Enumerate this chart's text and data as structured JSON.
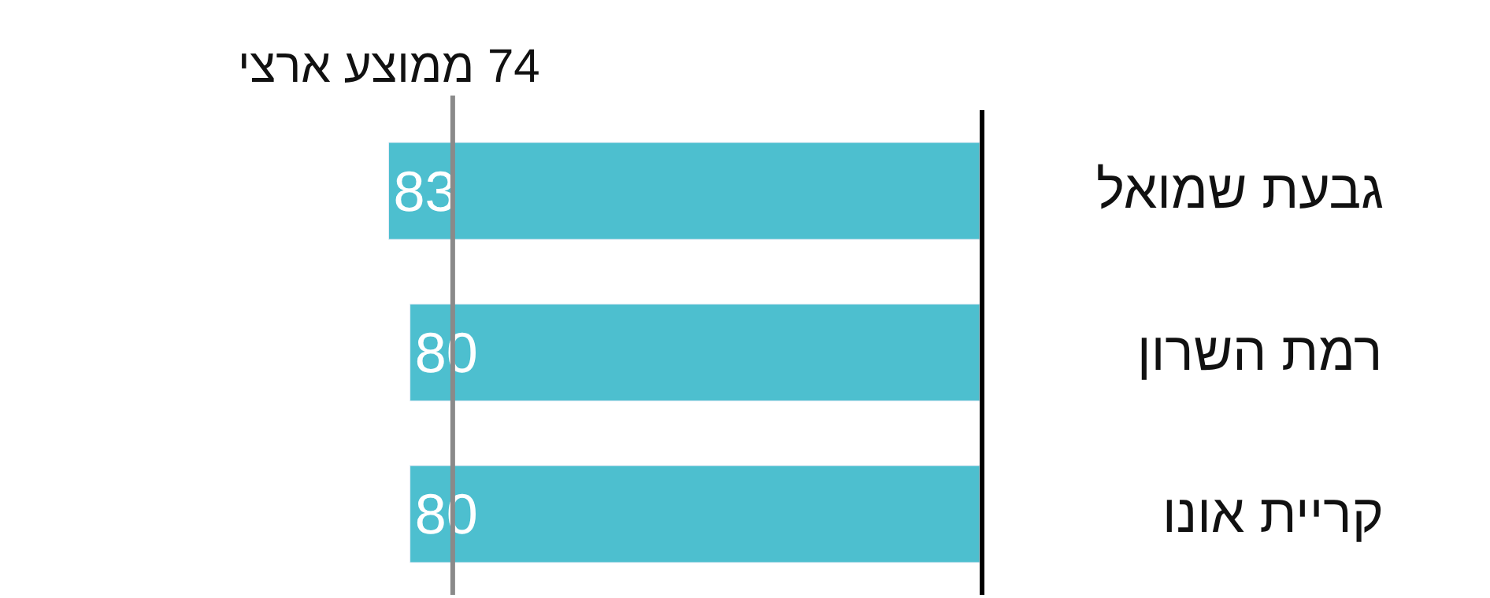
{
  "chart_data": {
    "type": "bar",
    "orientation": "horizontal",
    "categories": [
      "גבעת שמואל",
      "רמת השרון",
      "קריית אונו"
    ],
    "values": [
      83,
      80,
      80
    ],
    "color": "#4dbfcf",
    "data_labels": true,
    "ref_lines": [
      {
        "axis": "x",
        "value": 74,
        "label": "74 ממוצע ארצי",
        "color": "#8a8a8a"
      }
    ]
  }
}
